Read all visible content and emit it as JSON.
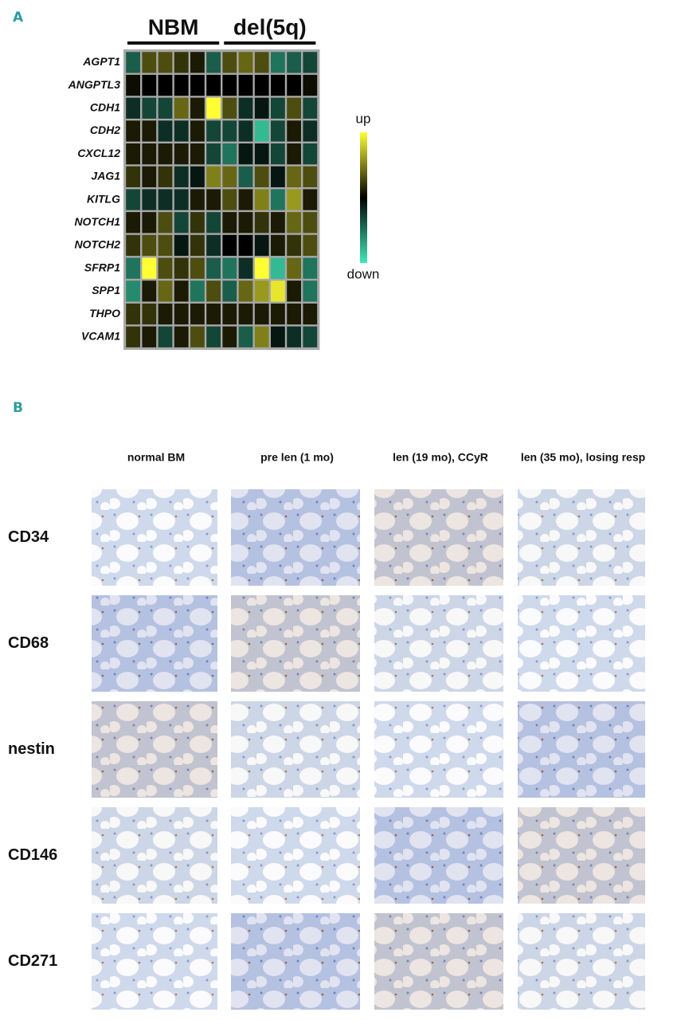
{
  "panel_a": {
    "label": "A",
    "groups": [
      {
        "label": "NBM",
        "columns": 6
      },
      {
        "label": "del(5q)",
        "columns": 6
      }
    ],
    "genes": [
      "AGPT1",
      "ANGPTL3",
      "CDH1",
      "CDH2",
      "CXCL12",
      "JAG1",
      "KITLG",
      "NOTCH1",
      "NOTCH2",
      "SFRP1",
      "SPP1",
      "THPO",
      "VCAM1"
    ],
    "values": [
      [
        -0.4,
        0.3,
        0.3,
        0.2,
        0.1,
        -0.4,
        0.3,
        0.4,
        0.3,
        -0.5,
        -0.4,
        -0.3
      ],
      [
        0.05,
        0,
        0,
        0,
        0,
        0,
        0,
        0,
        0,
        0,
        0,
        0.05
      ],
      [
        -0.2,
        -0.3,
        -0.3,
        0.4,
        0.1,
        1,
        0.3,
        -0.2,
        -0.1,
        -0.3,
        0.3,
        -0.3
      ],
      [
        0.1,
        0.1,
        -0.2,
        -0.2,
        0.1,
        -0.3,
        -0.3,
        -0.2,
        -0.8,
        -0.3,
        0.1,
        -0.2
      ],
      [
        0.1,
        0.1,
        0.1,
        0.1,
        0.1,
        -0.3,
        -0.5,
        -0.1,
        -0.1,
        -0.3,
        0.1,
        -0.3
      ],
      [
        0.2,
        0.1,
        0.2,
        -0.2,
        -0.1,
        0.5,
        0.4,
        -0.4,
        0.3,
        -0.1,
        0.4,
        0.3
      ],
      [
        -0.3,
        -0.2,
        -0.2,
        -0.2,
        0.1,
        0.1,
        0.3,
        0.1,
        0.5,
        -0.5,
        0.6,
        0.1
      ],
      [
        0.1,
        0.1,
        0.3,
        -0.3,
        0.2,
        -0.3,
        0.1,
        0.1,
        0.2,
        0.1,
        0.4,
        0.3
      ],
      [
        0.2,
        0.3,
        0.3,
        -0.1,
        0.2,
        -0.2,
        0,
        0,
        -0.1,
        0.1,
        0.2,
        0.3
      ],
      [
        -0.5,
        1,
        0.3,
        0.2,
        0.3,
        -0.4,
        -0.5,
        -0.2,
        1,
        -0.8,
        0.4,
        -0.5
      ],
      [
        -0.6,
        0.1,
        0.4,
        0.1,
        -0.5,
        0.3,
        -0.4,
        0.4,
        0.6,
        0.9,
        0.1,
        -0.5
      ],
      [
        0.2,
        0.2,
        0.1,
        0.1,
        0.1,
        0.1,
        0.1,
        0.1,
        0.1,
        0.1,
        0.1,
        0.1
      ],
      [
        0.2,
        0.1,
        -0.3,
        0.1,
        0.3,
        -0.3,
        0.1,
        -0.4,
        0.5,
        -0.1,
        -0.2,
        -0.3
      ]
    ],
    "colorbar": {
      "high_label": "up",
      "low_label": "down",
      "range": [
        -1,
        1
      ],
      "high_color": "#ffff33",
      "mid_color": "#000000",
      "low_color": "#40e8b8"
    }
  },
  "panel_b": {
    "label": "B",
    "columns": [
      "normal BM",
      "pre len (1 mo)",
      "len (19 mo), CCyR",
      "len (35 mo), losing resp"
    ],
    "rows": [
      "CD34",
      "CD68",
      "nestin",
      "CD146",
      "CD271"
    ]
  }
}
